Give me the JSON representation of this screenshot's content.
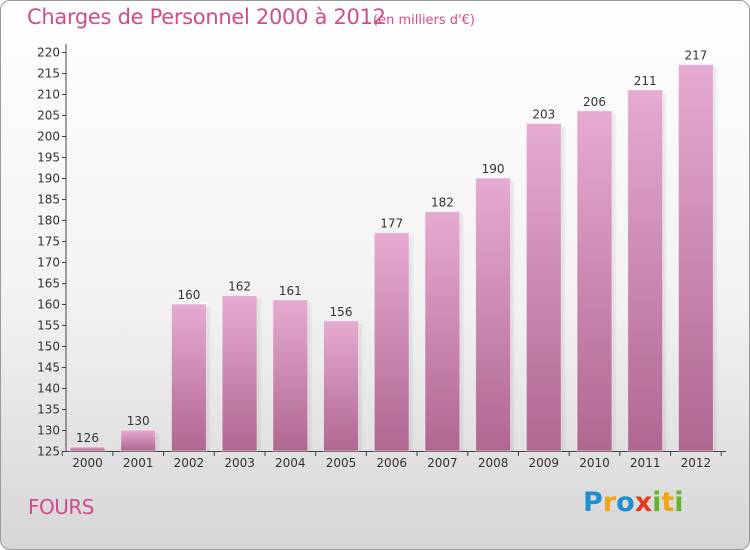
{
  "header": {
    "title": "Charges de Personnel 2000 à 2012",
    "subtitle": "(en milliers d'€)"
  },
  "footer": {
    "town": "FOURS",
    "logo_letters": [
      {
        "ch": "P",
        "color": "#1f8fd2"
      },
      {
        "ch": "r",
        "color": "#f2a310"
      },
      {
        "ch": "o",
        "color": "#1f8fd2"
      },
      {
        "ch": "x",
        "color": "#e23c1d"
      },
      {
        "ch": "i",
        "color": "#63b52c"
      },
      {
        "ch": "t",
        "color": "#f2a310"
      },
      {
        "ch": "i",
        "color": "#63b52c"
      }
    ]
  },
  "chart_data": {
    "type": "bar",
    "title": "Charges de Personnel 2000 à 2012",
    "subtitle": "(en milliers d'€)",
    "xlabel": "",
    "ylabel": "",
    "categories": [
      "2000",
      "2001",
      "2002",
      "2003",
      "2004",
      "2005",
      "2006",
      "2007",
      "2008",
      "2009",
      "2010",
      "2011",
      "2012"
    ],
    "values": [
      126,
      130,
      160,
      162,
      161,
      156,
      177,
      182,
      190,
      203,
      206,
      211,
      217
    ],
    "ylim": [
      125,
      220
    ],
    "ytick_step": 5,
    "grid": false,
    "bar_color_top": "#e6abd0",
    "bar_color_bottom": "#b06790"
  }
}
